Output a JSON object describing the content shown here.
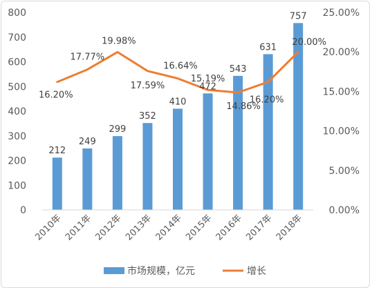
{
  "chart_data": {
    "type": "bar",
    "categories": [
      "2010年",
      "2011年",
      "2012年",
      "2013年",
      "2014年",
      "2015年",
      "2016年",
      "2017年",
      "2018年"
    ],
    "series": [
      {
        "name": "市场规模，亿元",
        "type": "bar",
        "axis": "left",
        "color": "#5b9bd5",
        "values": [
          212,
          249,
          299,
          352,
          410,
          472,
          543,
          631,
          757
        ],
        "labels": [
          "212",
          "249",
          "299",
          "352",
          "410",
          "472",
          "543",
          "631",
          "757"
        ]
      },
      {
        "name": "增长",
        "type": "line",
        "axis": "right",
        "color": "#ed7d31",
        "values": [
          16.2,
          17.77,
          19.98,
          17.59,
          16.64,
          15.19,
          14.86,
          16.2,
          20.0
        ],
        "labels": [
          "16.20%",
          "17.77%",
          "19.98%",
          "17.59%",
          "16.64%",
          "15.19%",
          "14.86%",
          "16.20%",
          "20.00%"
        ]
      }
    ],
    "y_left": {
      "min": 0,
      "max": 800,
      "step": 100,
      "ticks": [
        "0",
        "100",
        "200",
        "300",
        "400",
        "500",
        "600",
        "700",
        "800"
      ]
    },
    "y_right": {
      "min": 0,
      "max": 25,
      "step": 5,
      "ticks": [
        "0.00%",
        "5.00%",
        "10.00%",
        "15.00%",
        "20.00%",
        "25.00%"
      ]
    },
    "grid": false,
    "legend": "bottom",
    "title": "",
    "xlabel": "",
    "ylabel": ""
  }
}
